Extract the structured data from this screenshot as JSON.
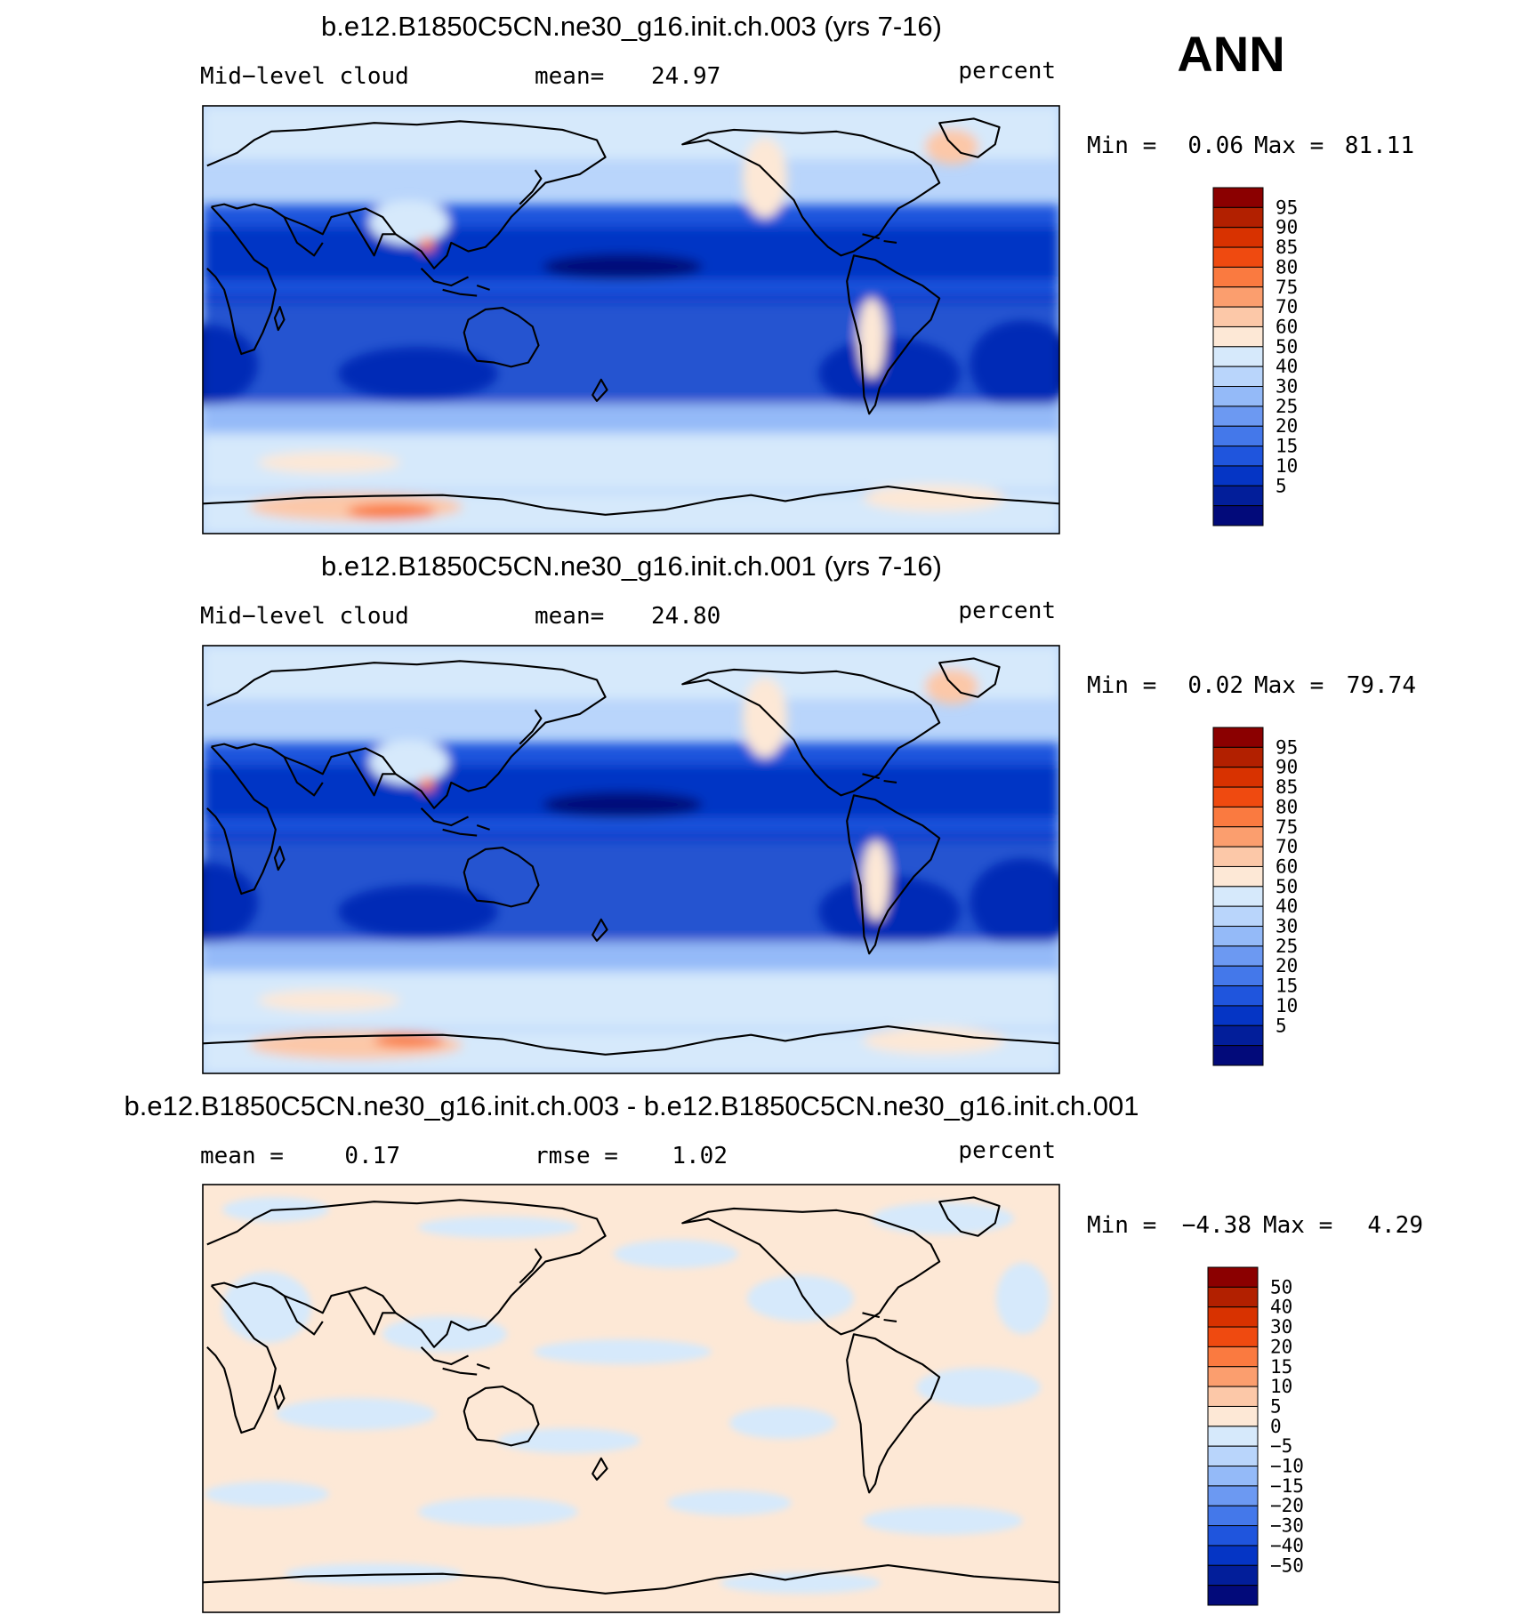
{
  "season": "ANN",
  "panels": [
    {
      "title": "b.e12.B1850C5CN.ne30_g16.init.ch.003 (yrs 7-16)",
      "variable": "Mid−level cloud",
      "stat_label": "mean=",
      "stat_value": "24.97",
      "units": "percent",
      "min_label": "Min =",
      "min_value": "0.06",
      "max_label": "Max =",
      "max_value": "81.11",
      "colorbar": {
        "colors": [
          "#8b0000",
          "#b22000",
          "#d83200",
          "#ef4a10",
          "#fa7a40",
          "#fb9e6e",
          "#fcc8a8",
          "#fde8d6",
          "#d6e9fb",
          "#b9d5fb",
          "#94baf8",
          "#6c99f2",
          "#4478ea",
          "#1f55dd",
          "#0535c5",
          "#021e9a",
          "#020a7a"
        ],
        "labels": [
          "95",
          "90",
          "85",
          "80",
          "75",
          "70",
          "60",
          "50",
          "40",
          "30",
          "25",
          "20",
          "15",
          "10",
          "5"
        ]
      }
    },
    {
      "title": "b.e12.B1850C5CN.ne30_g16.init.ch.001 (yrs 7-16)",
      "variable": "Mid−level cloud",
      "stat_label": "mean=",
      "stat_value": "24.80",
      "units": "percent",
      "min_label": "Min =",
      "min_value": "0.02",
      "max_label": "Max =",
      "max_value": "79.74",
      "colorbar": {
        "colors": [
          "#8b0000",
          "#b22000",
          "#d83200",
          "#ef4a10",
          "#fa7a40",
          "#fb9e6e",
          "#fcc8a8",
          "#fde8d6",
          "#d6e9fb",
          "#b9d5fb",
          "#94baf8",
          "#6c99f2",
          "#4478ea",
          "#1f55dd",
          "#0535c5",
          "#021e9a",
          "#020a7a"
        ],
        "labels": [
          "95",
          "90",
          "85",
          "80",
          "75",
          "70",
          "60",
          "50",
          "40",
          "30",
          "25",
          "20",
          "15",
          "10",
          "5"
        ]
      }
    },
    {
      "title": "b.e12.B1850C5CN.ne30_g16.init.ch.003 - b.e12.B1850C5CN.ne30_g16.init.ch.001",
      "variable": "mean =",
      "variable_value": "0.17",
      "stat_label": "rmse =",
      "stat_value": "1.02",
      "units": "percent",
      "min_label": "Min =",
      "min_value": "−4.38",
      "max_label": "Max =",
      "max_value": "4.29",
      "colorbar": {
        "colors": [
          "#8b0000",
          "#b22000",
          "#d83200",
          "#ef4a10",
          "#fa7a40",
          "#fb9e6e",
          "#fcc8a8",
          "#fde8d6",
          "#d6e9fb",
          "#b9d5fb",
          "#94baf8",
          "#6c99f2",
          "#4478ea",
          "#1f55dd",
          "#0535c5",
          "#021e9a",
          "#020a7a"
        ],
        "labels": [
          "50",
          "40",
          "30",
          "20",
          "15",
          "10",
          "5",
          "0",
          "−5",
          "−10",
          "−15",
          "−20",
          "−30",
          "−40",
          "−50"
        ]
      }
    }
  ]
}
